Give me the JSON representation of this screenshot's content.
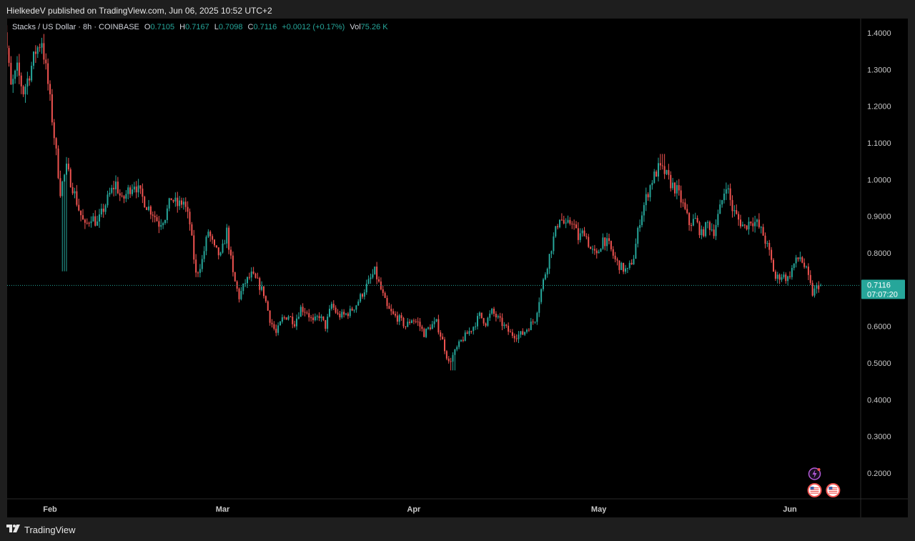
{
  "header": {
    "publish_text": "HielkedeV published on TradingView.com, Jun 06, 2025 10:52 UTC+2"
  },
  "legend": {
    "symbol": "Stacks / US Dollar · 8h · COINBASE",
    "o_label": "O",
    "o_value": "0.7105",
    "h_label": "H",
    "h_value": "0.7167",
    "l_label": "L",
    "l_value": "0.7098",
    "c_label": "C",
    "c_value": "0.7116",
    "change": "+0.0012 (+0.17%)",
    "vol_label": "Vol",
    "vol_value": "75.26 K"
  },
  "price_tag": {
    "price": "0.7116",
    "countdown": "07:07:20"
  },
  "footer": {
    "brand": "TradingView"
  },
  "colors": {
    "up": "#26a69a",
    "down": "#ef5350",
    "background": "#000000",
    "frame": "#1e1e1e",
    "price_tag": "#26a69a",
    "event_lightning": "#b45ad9"
  },
  "icons": {
    "event_1": "lightning-event-icon",
    "event_2": "us-flag-event-icon",
    "event_3": "us-flag-event-icon"
  },
  "chart_data": {
    "type": "candlestick",
    "title": "Stacks / US Dollar · 8h · COINBASE",
    "xlabel": "",
    "ylabel": "",
    "ylim": [
      0.14,
      1.44
    ],
    "y_ticks": [
      "1.4000",
      "1.3000",
      "1.2000",
      "1.1000",
      "1.0000",
      "0.9000",
      "0.8000",
      "0.7000",
      "0.6000",
      "0.5000",
      "0.4000",
      "0.3000",
      "0.2000"
    ],
    "x_range": [
      "2025-01-24",
      "2025-06-08"
    ],
    "x_ticks": [
      {
        "label": "Feb",
        "date": "2025-02-01"
      },
      {
        "label": "Mar",
        "date": "2025-03-01"
      },
      {
        "label": "Apr",
        "date": "2025-04-01"
      },
      {
        "label": "May",
        "date": "2025-05-01"
      },
      {
        "label": "Jun",
        "date": "2025-06-01"
      }
    ],
    "last_close": 0.7116,
    "last_high": 0.7167,
    "last_low": 0.7098,
    "last_open": 0.7105,
    "close_path": [
      {
        "date": "2025-01-24",
        "close": 1.39
      },
      {
        "date": "2025-01-25",
        "close": 1.41
      },
      {
        "date": "2025-01-26",
        "close": 1.25
      },
      {
        "date": "2025-01-27",
        "close": 1.3
      },
      {
        "date": "2025-01-28",
        "close": 1.24
      },
      {
        "date": "2025-01-29",
        "close": 1.29
      },
      {
        "date": "2025-01-30",
        "close": 1.35
      },
      {
        "date": "2025-01-31",
        "close": 1.38
      },
      {
        "date": "2025-02-01",
        "close": 1.26
      },
      {
        "date": "2025-02-02",
        "close": 1.12
      },
      {
        "date": "2025-02-03",
        "close": 0.97
      },
      {
        "date": "2025-02-04",
        "close": 1.03
      },
      {
        "date": "2025-02-05",
        "close": 0.98
      },
      {
        "date": "2025-02-06",
        "close": 0.92
      },
      {
        "date": "2025-02-07",
        "close": 0.87
      },
      {
        "date": "2025-02-08",
        "close": 0.9
      },
      {
        "date": "2025-02-09",
        "close": 0.88
      },
      {
        "date": "2025-02-10",
        "close": 0.92
      },
      {
        "date": "2025-02-11",
        "close": 0.96
      },
      {
        "date": "2025-02-12",
        "close": 0.99
      },
      {
        "date": "2025-02-13",
        "close": 0.94
      },
      {
        "date": "2025-02-14",
        "close": 0.97
      },
      {
        "date": "2025-02-15",
        "close": 0.99
      },
      {
        "date": "2025-02-16",
        "close": 0.96
      },
      {
        "date": "2025-02-17",
        "close": 0.93
      },
      {
        "date": "2025-02-18",
        "close": 0.91
      },
      {
        "date": "2025-02-19",
        "close": 0.88
      },
      {
        "date": "2025-02-20",
        "close": 0.9
      },
      {
        "date": "2025-02-21",
        "close": 0.95
      },
      {
        "date": "2025-02-22",
        "close": 0.93
      },
      {
        "date": "2025-02-23",
        "close": 0.94
      },
      {
        "date": "2025-02-24",
        "close": 0.88
      },
      {
        "date": "2025-02-25",
        "close": 0.74
      },
      {
        "date": "2025-02-26",
        "close": 0.78
      },
      {
        "date": "2025-02-27",
        "close": 0.86
      },
      {
        "date": "2025-02-28",
        "close": 0.81
      },
      {
        "date": "2025-03-01",
        "close": 0.79
      },
      {
        "date": "2025-03-02",
        "close": 0.86
      },
      {
        "date": "2025-03-03",
        "close": 0.74
      },
      {
        "date": "2025-03-04",
        "close": 0.68
      },
      {
        "date": "2025-03-05",
        "close": 0.72
      },
      {
        "date": "2025-03-06",
        "close": 0.74
      },
      {
        "date": "2025-03-07",
        "close": 0.72
      },
      {
        "date": "2025-03-08",
        "close": 0.69
      },
      {
        "date": "2025-03-09",
        "close": 0.62
      },
      {
        "date": "2025-03-10",
        "close": 0.58
      },
      {
        "date": "2025-03-11",
        "close": 0.62
      },
      {
        "date": "2025-03-12",
        "close": 0.63
      },
      {
        "date": "2025-03-13",
        "close": 0.61
      },
      {
        "date": "2025-03-14",
        "close": 0.65
      },
      {
        "date": "2025-03-15",
        "close": 0.64
      },
      {
        "date": "2025-03-16",
        "close": 0.61
      },
      {
        "date": "2025-03-17",
        "close": 0.63
      },
      {
        "date": "2025-03-18",
        "close": 0.6
      },
      {
        "date": "2025-03-19",
        "close": 0.66
      },
      {
        "date": "2025-03-20",
        "close": 0.63
      },
      {
        "date": "2025-03-21",
        "close": 0.63
      },
      {
        "date": "2025-03-22",
        "close": 0.64
      },
      {
        "date": "2025-03-23",
        "close": 0.66
      },
      {
        "date": "2025-03-24",
        "close": 0.69
      },
      {
        "date": "2025-03-25",
        "close": 0.72
      },
      {
        "date": "2025-03-26",
        "close": 0.75
      },
      {
        "date": "2025-03-27",
        "close": 0.7
      },
      {
        "date": "2025-03-28",
        "close": 0.65
      },
      {
        "date": "2025-03-29",
        "close": 0.63
      },
      {
        "date": "2025-03-30",
        "close": 0.62
      },
      {
        "date": "2025-03-31",
        "close": 0.6
      },
      {
        "date": "2025-04-01",
        "close": 0.62
      },
      {
        "date": "2025-04-02",
        "close": 0.61
      },
      {
        "date": "2025-04-03",
        "close": 0.58
      },
      {
        "date": "2025-04-04",
        "close": 0.6
      },
      {
        "date": "2025-04-05",
        "close": 0.61
      },
      {
        "date": "2025-04-06",
        "close": 0.56
      },
      {
        "date": "2025-04-07",
        "close": 0.5
      },
      {
        "date": "2025-04-08",
        "close": 0.53
      },
      {
        "date": "2025-04-09",
        "close": 0.56
      },
      {
        "date": "2025-04-10",
        "close": 0.58
      },
      {
        "date": "2025-04-11",
        "close": 0.6
      },
      {
        "date": "2025-04-12",
        "close": 0.63
      },
      {
        "date": "2025-04-13",
        "close": 0.61
      },
      {
        "date": "2025-04-14",
        "close": 0.64
      },
      {
        "date": "2025-04-15",
        "close": 0.62
      },
      {
        "date": "2025-04-16",
        "close": 0.6
      },
      {
        "date": "2025-04-17",
        "close": 0.58
      },
      {
        "date": "2025-04-18",
        "close": 0.575
      },
      {
        "date": "2025-04-19",
        "close": 0.58
      },
      {
        "date": "2025-04-20",
        "close": 0.6
      },
      {
        "date": "2025-04-21",
        "close": 0.62
      },
      {
        "date": "2025-04-22",
        "close": 0.7
      },
      {
        "date": "2025-04-23",
        "close": 0.77
      },
      {
        "date": "2025-04-24",
        "close": 0.84
      },
      {
        "date": "2025-04-25",
        "close": 0.9
      },
      {
        "date": "2025-04-26",
        "close": 0.87
      },
      {
        "date": "2025-04-27",
        "close": 0.89
      },
      {
        "date": "2025-04-28",
        "close": 0.84
      },
      {
        "date": "2025-04-29",
        "close": 0.86
      },
      {
        "date": "2025-04-30",
        "close": 0.81
      },
      {
        "date": "2025-05-01",
        "close": 0.79
      },
      {
        "date": "2025-05-02",
        "close": 0.84
      },
      {
        "date": "2025-05-03",
        "close": 0.82
      },
      {
        "date": "2025-05-04",
        "close": 0.78
      },
      {
        "date": "2025-05-05",
        "close": 0.76
      },
      {
        "date": "2025-05-06",
        "close": 0.75
      },
      {
        "date": "2025-05-07",
        "close": 0.79
      },
      {
        "date": "2025-05-08",
        "close": 0.89
      },
      {
        "date": "2025-05-09",
        "close": 0.95
      },
      {
        "date": "2025-05-10",
        "close": 1.0
      },
      {
        "date": "2025-05-11",
        "close": 1.03
      },
      {
        "date": "2025-05-12",
        "close": 1.02
      },
      {
        "date": "2025-05-13",
        "close": 0.99
      },
      {
        "date": "2025-05-14",
        "close": 0.97
      },
      {
        "date": "2025-05-15",
        "close": 0.93
      },
      {
        "date": "2025-05-16",
        "close": 0.88
      },
      {
        "date": "2025-05-17",
        "close": 0.89
      },
      {
        "date": "2025-05-18",
        "close": 0.85
      },
      {
        "date": "2025-05-19",
        "close": 0.88
      },
      {
        "date": "2025-05-20",
        "close": 0.86
      },
      {
        "date": "2025-05-21",
        "close": 0.92
      },
      {
        "date": "2025-05-22",
        "close": 0.99
      },
      {
        "date": "2025-05-23",
        "close": 0.92
      },
      {
        "date": "2025-05-24",
        "close": 0.89
      },
      {
        "date": "2025-05-25",
        "close": 0.87
      },
      {
        "date": "2025-05-26",
        "close": 0.89
      },
      {
        "date": "2025-05-27",
        "close": 0.88
      },
      {
        "date": "2025-05-28",
        "close": 0.85
      },
      {
        "date": "2025-05-29",
        "close": 0.8
      },
      {
        "date": "2025-05-30",
        "close": 0.73
      },
      {
        "date": "2025-05-31",
        "close": 0.74
      },
      {
        "date": "2025-06-01",
        "close": 0.73
      },
      {
        "date": "2025-06-02",
        "close": 0.77
      },
      {
        "date": "2025-06-03",
        "close": 0.79
      },
      {
        "date": "2025-06-04",
        "close": 0.75
      },
      {
        "date": "2025-06-05",
        "close": 0.69
      },
      {
        "date": "2025-06-06",
        "close": 0.7116
      }
    ],
    "events": [
      {
        "type": "lightning",
        "date": "2025-06-05"
      },
      {
        "type": "us-flag",
        "date": "2025-06-05"
      },
      {
        "type": "us-flag",
        "date": "2025-06-08"
      }
    ]
  }
}
